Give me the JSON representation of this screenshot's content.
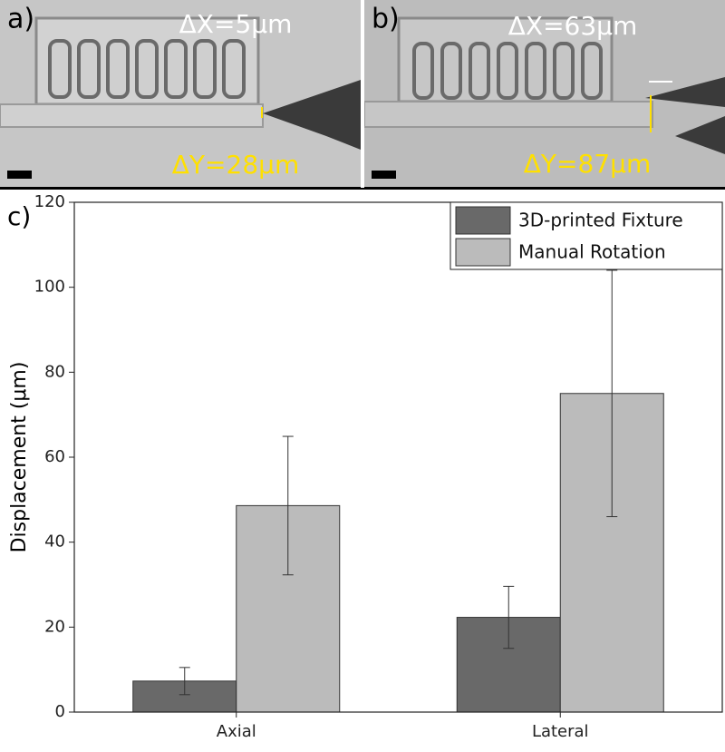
{
  "panels": [
    {
      "label": "a)",
      "dx": "ΔX=5μm",
      "dy": "ΔY=28μm"
    },
    {
      "label": "b)",
      "dx": "ΔX=63μm",
      "dy": "ΔY=87μm"
    }
  ],
  "chart_data": {
    "type": "bar",
    "label": "c)",
    "ylabel": "Displacement (μm)",
    "categories": [
      "Axial",
      "Lateral"
    ],
    "series": [
      {
        "name": "3D-printed Fixture",
        "color": "#696969",
        "values": [
          7.3,
          22.3
        ],
        "errors": [
          3.2,
          7.3
        ]
      },
      {
        "name": "Manual Rotation",
        "color": "#bbbbbb",
        "values": [
          48.6,
          75
        ],
        "errors": [
          16.3,
          29
        ]
      }
    ],
    "ylim": [
      0,
      120
    ],
    "yticks": [
      0,
      20,
      40,
      60,
      80,
      100,
      120
    ],
    "legend": "upper right"
  }
}
